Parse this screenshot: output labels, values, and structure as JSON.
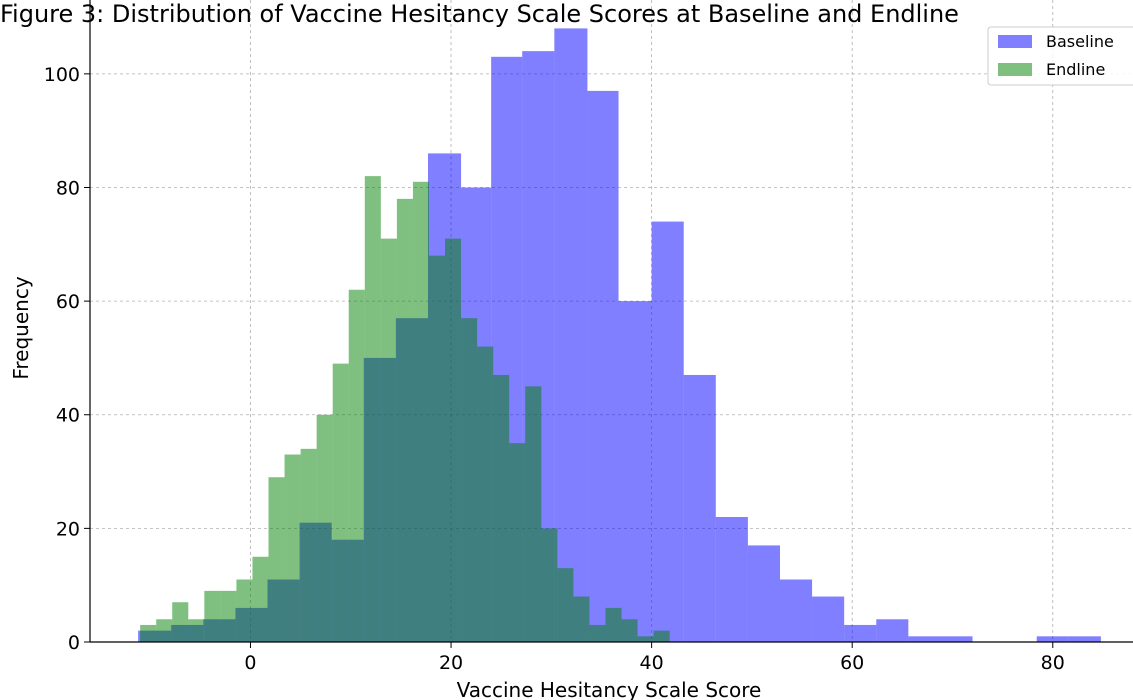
{
  "chart_data": {
    "type": "histogram",
    "title": "Figure 3: Distribution of Vaccine Hesitancy Scale Scores at Baseline and Endline",
    "xlabel": "Vaccine Hesitancy Scale Score",
    "ylabel": "Frequency",
    "xlim": [
      -16,
      88
    ],
    "ylim": [
      0,
      113
    ],
    "xticks": [
      0,
      20,
      40,
      60,
      80
    ],
    "yticks": [
      0,
      20,
      40,
      60,
      80,
      100
    ],
    "grid": true,
    "legend_position": "top-right",
    "series": [
      {
        "name": "Baseline",
        "color": "#0000ff",
        "opacity": 0.5,
        "bins": [
          [
            -11.2,
            -7.9,
            2
          ],
          [
            -7.9,
            -4.7,
            3
          ],
          [
            -4.7,
            -1.5,
            4
          ],
          [
            -1.5,
            1.7,
            6
          ],
          [
            1.7,
            4.9,
            11
          ],
          [
            4.9,
            8.1,
            21
          ],
          [
            8.1,
            11.3,
            18
          ],
          [
            11.3,
            14.5,
            50
          ],
          [
            14.5,
            17.7,
            57
          ],
          [
            17.7,
            21.0,
            86
          ],
          [
            21.0,
            24.0,
            80
          ],
          [
            24.0,
            27.1,
            103
          ],
          [
            27.1,
            30.3,
            104
          ],
          [
            30.3,
            33.6,
            108
          ],
          [
            33.6,
            36.7,
            97
          ],
          [
            36.7,
            40.0,
            60
          ],
          [
            40.0,
            43.2,
            74
          ],
          [
            43.2,
            46.4,
            47
          ],
          [
            46.4,
            49.6,
            22
          ],
          [
            49.6,
            52.8,
            17
          ],
          [
            52.8,
            56.0,
            11
          ],
          [
            56.0,
            59.2,
            8
          ],
          [
            59.2,
            62.4,
            3
          ],
          [
            62.4,
            65.6,
            4
          ],
          [
            65.6,
            68.8,
            1
          ],
          [
            68.8,
            72.0,
            1
          ],
          [
            72.0,
            75.2,
            0
          ],
          [
            75.2,
            78.4,
            0
          ],
          [
            78.4,
            81.6,
            1
          ],
          [
            81.6,
            84.8,
            1
          ]
        ]
      },
      {
        "name": "Endline",
        "color": "#008000",
        "opacity": 0.5,
        "bins": [
          [
            -11.0,
            -9.4,
            3
          ],
          [
            -9.4,
            -7.8,
            4
          ],
          [
            -7.8,
            -6.2,
            7
          ],
          [
            -6.2,
            -4.6,
            4
          ],
          [
            -4.6,
            -3.0,
            9
          ],
          [
            -3.0,
            -1.4,
            9
          ],
          [
            -1.4,
            0.2,
            11
          ],
          [
            0.2,
            1.8,
            15
          ],
          [
            1.8,
            3.4,
            29
          ],
          [
            3.4,
            5.0,
            33
          ],
          [
            5.0,
            6.6,
            34
          ],
          [
            6.6,
            8.2,
            40
          ],
          [
            8.2,
            9.8,
            49
          ],
          [
            9.8,
            11.4,
            62
          ],
          [
            11.4,
            13.0,
            82
          ],
          [
            13.0,
            14.6,
            71
          ],
          [
            14.6,
            16.2,
            78
          ],
          [
            16.2,
            17.8,
            81
          ],
          [
            17.8,
            19.4,
            68
          ],
          [
            19.4,
            21.0,
            71
          ],
          [
            21.0,
            22.6,
            57
          ],
          [
            22.6,
            24.2,
            52
          ],
          [
            24.2,
            25.8,
            47
          ],
          [
            25.8,
            27.4,
            35
          ],
          [
            27.4,
            29.0,
            45
          ],
          [
            29.0,
            30.6,
            20
          ],
          [
            30.6,
            32.2,
            13
          ],
          [
            32.2,
            33.8,
            8
          ],
          [
            33.8,
            35.4,
            3
          ],
          [
            35.4,
            37.0,
            6
          ],
          [
            37.0,
            38.6,
            4
          ],
          [
            38.6,
            40.2,
            1
          ],
          [
            40.2,
            41.8,
            2
          ]
        ]
      }
    ]
  }
}
